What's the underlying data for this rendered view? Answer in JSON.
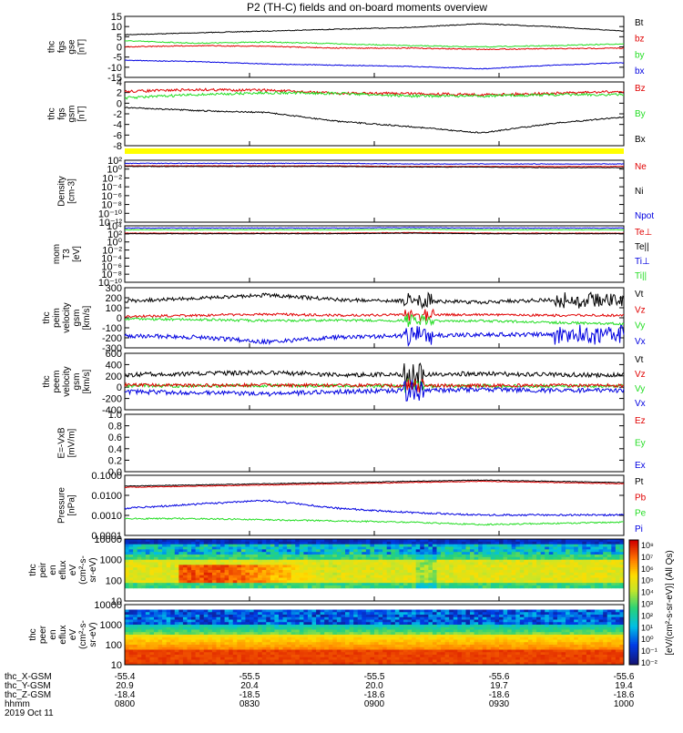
{
  "title": "P2 (TH-C) fields and on-board moments overview",
  "colors": {
    "black": "#000000",
    "red": "#e00000",
    "green": "#22dd22",
    "blue": "#0000e0",
    "yellow": "#ffff00"
  },
  "panels": [
    {
      "id": "fgs-gse",
      "ylabel": [
        "thc",
        "fgs",
        "gse",
        "[nT]"
      ],
      "yticks": [
        "15",
        "10",
        "5",
        "0",
        "-5",
        "-10",
        "-15"
      ],
      "ylim": [
        -15,
        15
      ],
      "legend": [
        {
          "text": "Bt",
          "color": "black"
        },
        {
          "text": "bz",
          "color": "red"
        },
        {
          "text": "by",
          "color": "green"
        },
        {
          "text": "bx",
          "color": "blue"
        }
      ]
    },
    {
      "id": "fgs-gsm",
      "ylabel": [
        "thc",
        "fgs",
        "gsm",
        "[nT]"
      ],
      "yticks": [
        "4",
        "2",
        "0",
        "-2",
        "-4",
        "-6",
        "-8"
      ],
      "ylim": [
        -9,
        4
      ],
      "legend": [
        {
          "text": "Bz",
          "color": "red"
        },
        {
          "text": "By",
          "color": "green"
        },
        {
          "text": "Bx",
          "color": "black"
        }
      ]
    },
    {
      "id": "density",
      "ylabel": [
        "Density",
        "[cm-3]"
      ],
      "yticks": [
        "10²",
        "10⁰",
        "10⁻²",
        "10⁻⁴",
        "10⁻⁶",
        "10⁻⁸",
        "10⁻¹⁰",
        "10⁻¹²"
      ],
      "ylim": [
        -13,
        3
      ],
      "legend": [
        {
          "text": "Ne",
          "color": "red"
        },
        {
          "text": "Ni",
          "color": "black"
        },
        {
          "text": "Npot",
          "color": "blue"
        }
      ]
    },
    {
      "id": "temp",
      "ylabel": [
        "mom",
        "T3",
        "[eV]"
      ],
      "yticks": [
        "10⁴",
        "10²",
        "10⁰",
        "10⁻²",
        "10⁻⁴",
        "10⁻⁶",
        "10⁻⁸",
        "10⁻¹⁰"
      ],
      "ylim": [
        -11,
        5
      ],
      "legend": [
        {
          "text": "Te⊥",
          "color": "red"
        },
        {
          "text": "Te||",
          "color": "black"
        },
        {
          "text": "Ti⊥",
          "color": "blue"
        },
        {
          "text": "Ti||",
          "color": "green"
        }
      ]
    },
    {
      "id": "peim-vel",
      "ylabel": [
        "thc",
        "peim",
        "velocity",
        "gsm",
        "[km/s]"
      ],
      "yticks": [
        "300",
        "200",
        "100",
        "0",
        "-100",
        "-200",
        "-300"
      ],
      "ylim": [
        -330,
        330
      ],
      "legend": [
        {
          "text": "Vt",
          "color": "black"
        },
        {
          "text": "Vz",
          "color": "red"
        },
        {
          "text": "Vy",
          "color": "green"
        },
        {
          "text": "Vx",
          "color": "blue"
        }
      ]
    },
    {
      "id": "peem-vel",
      "ylabel": [
        "thc",
        "peem",
        "velocity",
        "gsm",
        "[km/s]"
      ],
      "yticks": [
        "600",
        "400",
        "200",
        "0",
        "-200",
        "-400"
      ],
      "ylim": [
        -450,
        600
      ],
      "legend": [
        {
          "text": "Vt",
          "color": "black"
        },
        {
          "text": "Vz",
          "color": "red"
        },
        {
          "text": "Vy",
          "color": "green"
        },
        {
          "text": "Vx",
          "color": "blue"
        }
      ]
    },
    {
      "id": "efield",
      "ylabel": [
        "E=-VxB",
        "[mV/m]"
      ],
      "yticks": [
        "1.0",
        "0.8",
        "0.6",
        "0.4",
        "0.2",
        "0.0"
      ],
      "ylim": [
        0,
        1
      ],
      "legend": [
        {
          "text": "Ez",
          "color": "red"
        },
        {
          "text": "Ey",
          "color": "green"
        },
        {
          "text": "Ex",
          "color": "blue"
        }
      ]
    },
    {
      "id": "pressure",
      "ylabel": [
        "Pressure",
        "[nPa]"
      ],
      "yticks": [
        "0.1000",
        "0.0100",
        "0.0010",
        "0.0001"
      ],
      "ylim": [
        -4.2,
        -0.8
      ],
      "legend": [
        {
          "text": "Pt",
          "color": "black"
        },
        {
          "text": "Pb",
          "color": "red"
        },
        {
          "text": "Pe",
          "color": "green"
        },
        {
          "text": "Pi",
          "color": "blue"
        }
      ]
    },
    {
      "id": "peir-spec",
      "ylabel": [
        "thc",
        "peir",
        "en",
        "eflux",
        "eV",
        "(cm²-s-",
        "sr-eV)"
      ],
      "yticks": [
        "10000",
        "1000",
        "100",
        "10"
      ],
      "legend": []
    },
    {
      "id": "peer-spec",
      "ylabel": [
        "thc",
        "peer",
        "en",
        "eflux",
        "eV",
        "(cm²-s-",
        "sr-eV)"
      ],
      "yticks": [
        "10000",
        "1000",
        "100",
        "10"
      ],
      "legend": []
    }
  ],
  "colorbar": {
    "label": "[eV/(cm²-s-sr-eV)] (All Qs)",
    "ticks": [
      "10⁸",
      "10⁷",
      "10⁶",
      "10⁵",
      "10⁴",
      "10³",
      "10²",
      "10¹",
      "10⁰",
      "10⁻¹",
      "10⁻²"
    ]
  },
  "xaxis": {
    "row_labels": [
      "thc_X-GSM",
      "thc_Y-GSM",
      "thc_Z-GSM",
      "hhmm"
    ],
    "date": "2019 Oct 11",
    "ticks": [
      {
        "x": "-55.4",
        "y": "20.9",
        "z": "-18.4",
        "t": "0800"
      },
      {
        "x": "-55.5",
        "y": "20.4",
        "z": "-18.5",
        "t": "0830"
      },
      {
        "x": "-55.5",
        "y": "20.0",
        "z": "-18.6",
        "t": "0900"
      },
      {
        "x": "-55.6",
        "y": "19.7",
        "z": "-18.6",
        "t": "0930"
      },
      {
        "x": "-55.6",
        "y": "19.4",
        "z": "-18.6",
        "t": "1000"
      }
    ]
  },
  "chart_data": {
    "type": "line",
    "x_range": [
      "0800",
      "1000"
    ],
    "series_approx": {
      "Bt_nT": [
        8,
        9,
        10,
        11,
        12,
        13,
        12,
        11
      ],
      "bz_nT": [
        0,
        0.5,
        0.5,
        0,
        -0.5,
        -0.5,
        -0.5,
        -0.5
      ],
      "by_nT": [
        3,
        3.5,
        4,
        3,
        2.5,
        2,
        2,
        2
      ],
      "bx_nT": [
        -7,
        -8,
        -9,
        -10,
        -11,
        -12,
        -11,
        -9
      ],
      "Bx_gsm_nT": [
        -2,
        -3,
        -4,
        -6,
        -7,
        -8,
        -6,
        -5
      ],
      "Vt_peim_kms": [
        150,
        180,
        200,
        150,
        150,
        130,
        120,
        120
      ],
      "Vx_peim_kms": [
        -150,
        -180,
        -220,
        -180,
        -170,
        -150,
        -150,
        -140
      ],
      "Pt_nPa": [
        0.03,
        0.035,
        0.04,
        0.05,
        0.055,
        0.06,
        0.05,
        0.045
      ],
      "Pi_nPa": [
        0.004,
        0.006,
        0.007,
        0.003,
        0.002,
        0.0015,
        0.0012,
        0.001
      ],
      "Pe_nPa": [
        0.0015,
        0.0013,
        0.0012,
        0.0009,
        0.0008,
        0.0006,
        0.0007,
        0.0008
      ]
    }
  }
}
